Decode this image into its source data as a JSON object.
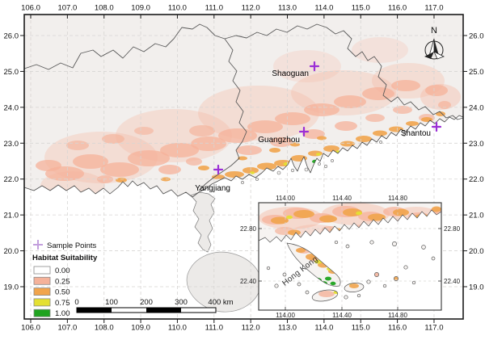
{
  "figure": {
    "colors": {
      "sample_point": "#9b2fd6",
      "legend_sample_icon": "#c39fdd",
      "boundary": "#5a5a5a",
      "land": "#f2efed"
    },
    "axes": {
      "lon_labels": [
        "106.0",
        "107.0",
        "108.0",
        "109.0",
        "110.0",
        "111.0",
        "112.0",
        "113.0",
        "114.0",
        "115.0",
        "116.0",
        "117.0"
      ],
      "lat_labels": [
        "26.0",
        "25.0",
        "24.0",
        "23.0",
        "22.0",
        "21.0",
        "20.0",
        "19.0"
      ]
    },
    "north_label": "N",
    "cities": [
      {
        "name": "Shaoguan",
        "marker": [
          389,
          82
        ],
        "label": [
          382,
          94
        ],
        "anchor": "end"
      },
      {
        "name": "Guangzhou",
        "marker": [
          376,
          163
        ],
        "label": [
          371,
          176
        ],
        "anchor": "end"
      },
      {
        "name": "Shantou",
        "marker": [
          540,
          157
        ],
        "label": [
          533,
          168
        ],
        "anchor": "end"
      },
      {
        "name": "Yangjiang",
        "marker": [
          270,
          210
        ],
        "label": [
          285,
          236
        ],
        "anchor": "end"
      }
    ],
    "legend": {
      "sample_points_label": "Sample Points",
      "title": "Habitat Suitability",
      "classes": [
        {
          "label": "0.00",
          "color": "#ffffff"
        },
        {
          "label": "0.25",
          "color": "#f5b29a"
        },
        {
          "label": "0.50",
          "color": "#f1a44c"
        },
        {
          "label": "0.75",
          "color": "#e4e032"
        },
        {
          "label": "1.00",
          "color": "#1fa31f"
        }
      ]
    },
    "scale_bar": {
      "labels": [
        "0",
        "100",
        "200",
        "300",
        "400 km"
      ]
    },
    "inset": {
      "lon_labels": [
        "114.00",
        "114.40",
        "114.80"
      ],
      "lat_labels": [
        "22.80",
        "22.40"
      ],
      "region_label": "Hong Kong"
    }
  }
}
